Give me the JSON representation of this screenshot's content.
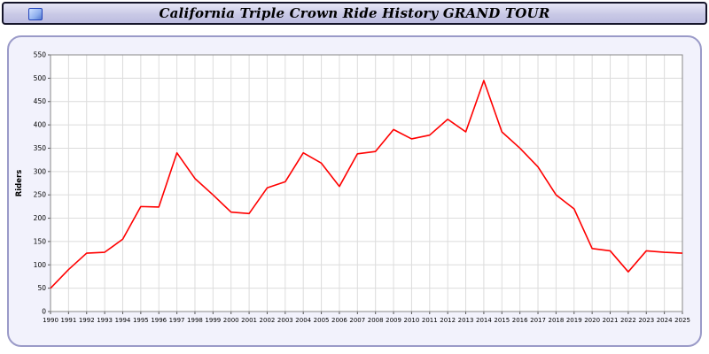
{
  "header": {
    "title": "California Triple Crown Ride History GRAND TOUR",
    "logo_icon": "image-logo-icon"
  },
  "colors": {
    "line": "#ff0000",
    "grid": "#dcdcdc",
    "plot_border": "#888888",
    "plot_background": "#ffffff",
    "panel_background": "#f2f2fc",
    "panel_border": "#9a9ac8",
    "title_bar_border": "#15152a"
  },
  "chart_data": {
    "type": "line",
    "title": "California Triple Crown Ride History GRAND TOUR",
    "xlabel": "",
    "ylabel": "Riders",
    "ylim": [
      0,
      550
    ],
    "ytick_step": 50,
    "grid": true,
    "legend_position": "none",
    "x": [
      1990,
      1991,
      1992,
      1993,
      1994,
      1995,
      1996,
      1997,
      1998,
      1999,
      2000,
      2001,
      2002,
      2003,
      2004,
      2005,
      2006,
      2007,
      2008,
      2009,
      2010,
      2011,
      2012,
      2013,
      2014,
      2015,
      2016,
      2017,
      2018,
      2019,
      2020,
      2021,
      2022,
      2023,
      2024,
      2025
    ],
    "series": [
      {
        "name": "Riders",
        "color": "#ff0000",
        "values": [
          50,
          90,
          125,
          127,
          155,
          225,
          224,
          340,
          285,
          250,
          213,
          210,
          265,
          278,
          340,
          318,
          268,
          338,
          343,
          390,
          370,
          378,
          412,
          385,
          495,
          385,
          350,
          310,
          250,
          220,
          135,
          130,
          85,
          130,
          127,
          125
        ]
      }
    ]
  }
}
